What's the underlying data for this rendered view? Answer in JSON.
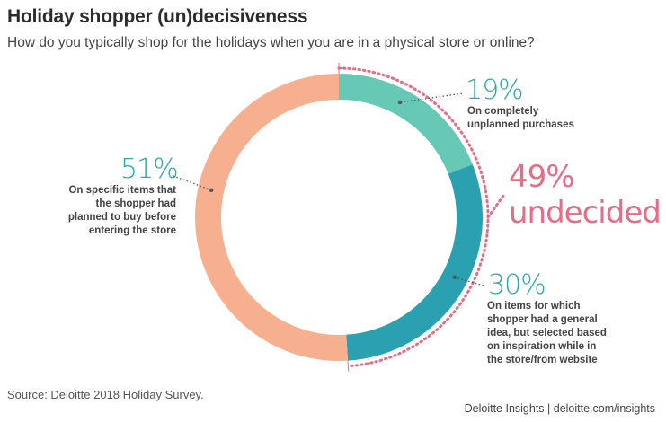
{
  "header": {
    "title": "Holiday shopper (un)decisiveness",
    "subtitle": "How do you typically shop for the holidays when you are in a physical store or online?"
  },
  "chart_data": {
    "type": "pie",
    "variant": "donut",
    "title": "Holiday shopper (un)decisiveness",
    "subtitle": "How do you typically shop for the holidays when you are in a physical store or online?",
    "slices": [
      {
        "label": "On completely unplanned purchases",
        "pct_label": "19%",
        "value": 19,
        "color": "#67c8b5"
      },
      {
        "label": "On items for which shopper had a general idea, but selected based on inspiration while in the store/from website",
        "pct_label": "30%",
        "value": 30,
        "color": "#2aa0b1"
      },
      {
        "label": "On specific items that the shopper had planned to buy before entering the store",
        "pct_label": "51%",
        "value": 51,
        "color": "#f7b08f"
      }
    ],
    "annotation": {
      "pct_label": "49%",
      "label": "undecided",
      "value": 49,
      "color": "#e56d86"
    }
  },
  "labels": {
    "s19_pct": "19%",
    "s19_desc_1": "On completely",
    "s19_desc_2": "unplanned purchases",
    "s30_pct": "30%",
    "s30_desc_1": "On items for which",
    "s30_desc_2": "shopper had a general",
    "s30_desc_3": "idea, but selected based",
    "s30_desc_4": "on inspiration while in",
    "s30_desc_5": "the store/from website",
    "s51_pct": "51%",
    "s51_desc_1": "On specific items that",
    "s51_desc_2": "the shopper had",
    "s51_desc_3": "planned to buy before",
    "s51_desc_4": "entering the store",
    "und_pct": "49%",
    "und_label": "undecided"
  },
  "footer": {
    "source": "Source: Deloitte 2018 Holiday Survey.",
    "brand": "Deloitte Insights | deloitte.com/insights"
  }
}
